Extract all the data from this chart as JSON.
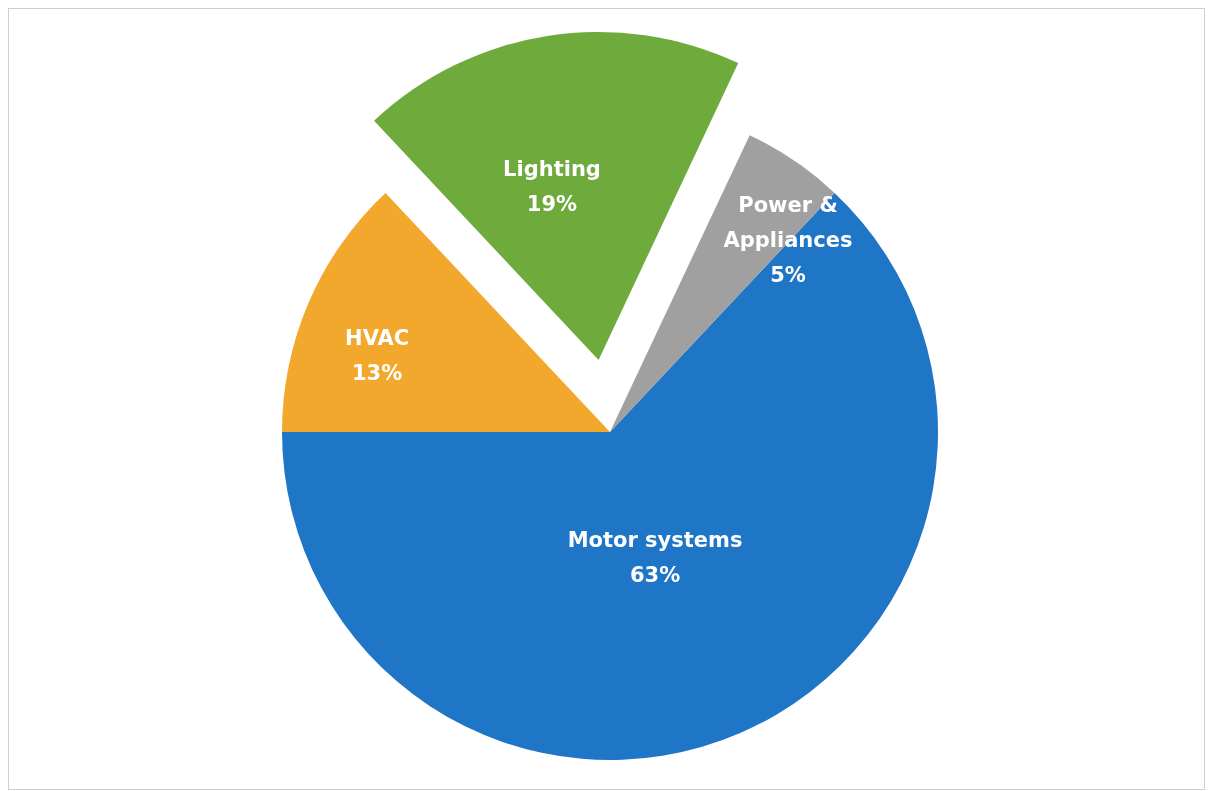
{
  "chart_data": {
    "type": "pie",
    "categories": [
      "Motor systems",
      "HVAC",
      "Lighting",
      "Power & Appliances"
    ],
    "values": [
      63,
      13,
      19,
      5
    ],
    "value_labels": [
      "63%",
      "13%",
      "19%",
      "5%"
    ],
    "colors": [
      "#1f75c6",
      "#f2a82c",
      "#6eaa3c",
      "#a0a0a0"
    ]
  }
}
